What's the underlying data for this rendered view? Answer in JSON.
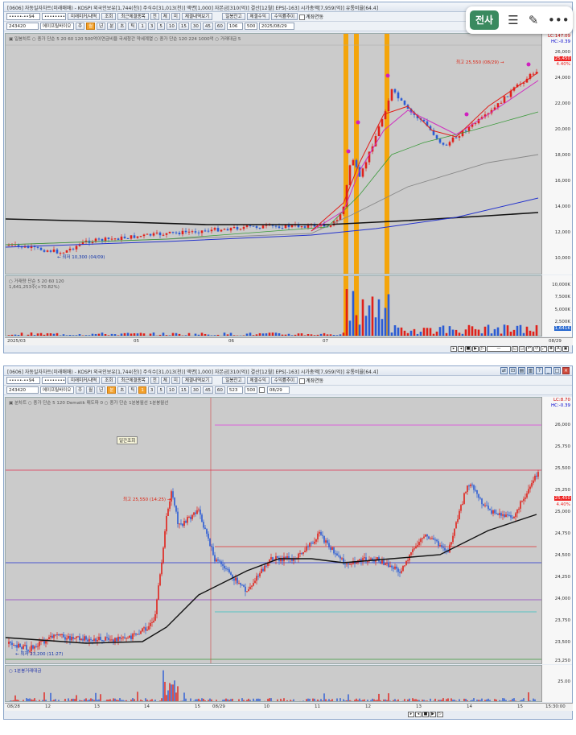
{
  "w1": {
    "title": "[0606] 자동일자차트(미래매매) - KOSPI 외국인보유[1,744(천)] 주식수[31,013(천)] 액면[1,000] 자본금[310(억)] 결산[12월] EPS[-163] 시가총액[7,959(억)] 유통비율[64.4]",
    "code": "243420",
    "name": "에이프릴바이오",
    "acct": "•••••-••94",
    "pw": "••••••••",
    "buttons": [
      "미래미커/내역",
      "조회",
      "최근체결종목",
      "전",
      "체",
      "미",
      "체결내역보기"
    ],
    "right_buttons": [
      "일봉잔고",
      "체결수익",
      "수익률추이",
      "계좌연동"
    ],
    "periods": [
      "주",
      "월",
      "년",
      "분",
      "초",
      "틱",
      "1",
      "3",
      "5",
      "10",
      "15",
      "30",
      "45",
      "60"
    ],
    "count": "106",
    "total": "500",
    "date": "2025/08/29",
    "legend": "▣ 일봉차트  ○ 종가 단순 5  20  60  120  500억이연금비율  국세청간  약세계열  ○ 종가 단순 120  224  1000억 ○ 거래대금  5",
    "yticks": [
      "26,000",
      "24,000",
      "22,000",
      "20,000",
      "18,000",
      "16,000",
      "14,000",
      "12,000",
      "10,000"
    ],
    "ytop": [
      "LC:147.09",
      "HC:-0.39"
    ],
    "high_label": "최고 25,550 (08/29) →",
    "low_label": "← 최저 10,300 (04/09)",
    "cur_price": "25,450",
    "cur_pct": "4.40%",
    "vol_legend": "○ 거래량  단순 5  20  60  120",
    "vol_value": "1,641,253주(+70.82%)",
    "vticks": [
      "10,000K",
      "7,500K",
      "5,000K",
      "2,500K"
    ],
    "vol_cur": "1,641K",
    "xlabels": [
      "2025/03",
      "05",
      "06",
      "07",
      "08/29"
    ],
    "chart_data": {
      "type": "candlestick",
      "series": [
        {
          "name": "종가",
          "x": [
            "2025/03",
            "2025/04",
            "2025/05",
            "2025/06",
            "2025/07",
            "2025/07/20",
            "2025/08",
            "2025/08/29"
          ],
          "values": [
            11200,
            10300,
            11800,
            12200,
            12300,
            23500,
            20000,
            25450
          ]
        }
      ],
      "ylim": [
        9500,
        26800
      ]
    }
  },
  "w2": {
    "title": "[0606] 자동일자차트(미래매매) - KOSPI 외국인보유[1,744(천)] 주식수[31,013(천)] 액면[1,000] 자본금[310(억)] 결산[12월] EPS[-163] 시가총액[7,959(억)] 유통비율[64.4]",
    "code": "243420",
    "name": "에이프릴바이오",
    "periods": [
      "주",
      "월",
      "년",
      "분",
      "초",
      "틱",
      "1",
      "3",
      "5",
      "10",
      "15",
      "30",
      "45",
      "60"
    ],
    "count": "523",
    "total": "500",
    "date": "08/29",
    "tooltip": "일간조회",
    "legend": "▣ 분차트  ○ 종가 단순 5  120  Dematik 매도파   0  ○ 종가 단순  1분봉월선  1분봉월선",
    "yticks": [
      "26,000",
      "25,750",
      "25,500",
      "25,250",
      "25,000",
      "24,750",
      "24,500",
      "24,250",
      "24,000",
      "23,750",
      "23,500",
      "23,250"
    ],
    "ytop": [
      "LC:8.70",
      "HC:-0.39"
    ],
    "high_label": "최고 25,550 (14:25) →",
    "low_label": "← 최저 23,200 (11:27)",
    "cur_price": "25,450",
    "cur_pct": "4.40%",
    "vol_legend": "○ 1분봉거래대금",
    "vtick": "25.00",
    "xlabels": [
      "08/28",
      "12",
      "13",
      "14",
      "15",
      "08/29",
      "10",
      "11",
      "12",
      "13",
      "14",
      "15"
    ],
    "time": "15:30:00",
    "chart_data": {
      "type": "candlestick",
      "series": [
        {
          "name": "1분봉",
          "x": [
            "08/28 09:00",
            "08/28 12:00",
            "08/28 14:00",
            "08/28 14:25",
            "08/28 15:00",
            "08/29 10:00",
            "08/29 11:00",
            "08/29 13:00",
            "08/29 14:00",
            "08/29 15:20"
          ],
          "values": [
            23450,
            23300,
            23400,
            25550,
            24600,
            24200,
            24750,
            24300,
            25400,
            25450
          ]
        }
      ],
      "ylim": [
        23050,
        26150
      ]
    }
  }
}
